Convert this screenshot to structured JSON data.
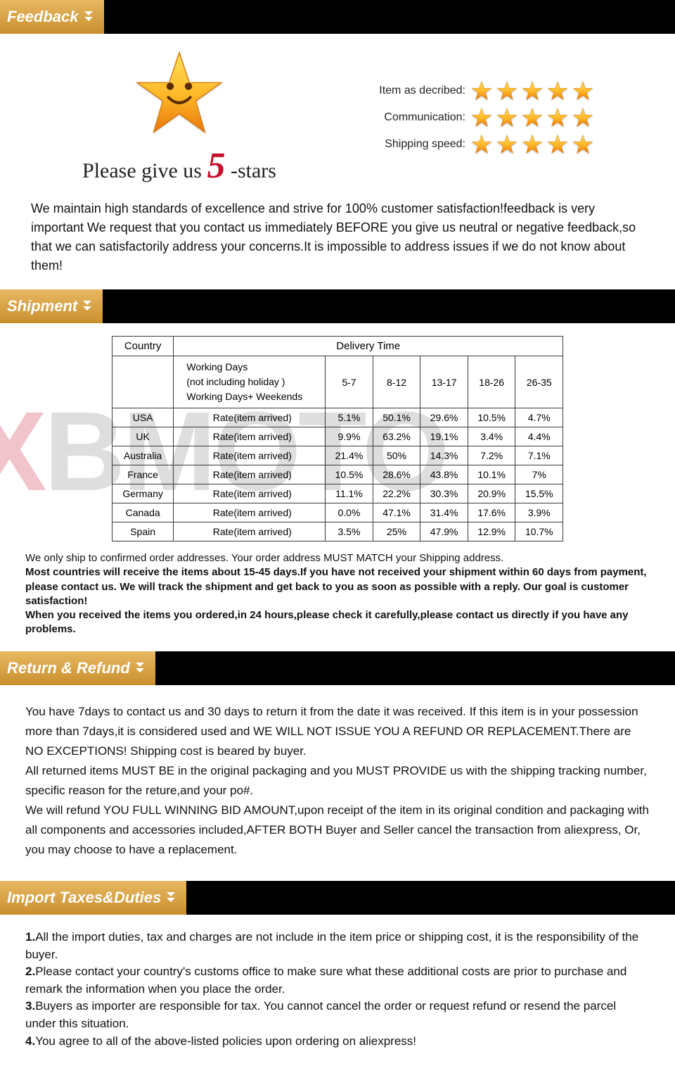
{
  "sections": {
    "feedback": "Feedback",
    "shipment": "Shipment",
    "return": "Return & Refund",
    "taxes": "Import Taxes&Duties"
  },
  "colors": {
    "tab_grad_top": "#e8b862",
    "tab_grad_bot": "#c88f2e",
    "bar_bg": "#000000",
    "star_top": "#ffd23a",
    "star_bot": "#f08a1a",
    "five_red": "#c8102e"
  },
  "feedback": {
    "please_prefix": "Please give us ",
    "five": "5",
    "please_suffix": " -stars",
    "rows": [
      {
        "label": "Item as decribed:",
        "stars": 5
      },
      {
        "label": "Communication:",
        "stars": 5
      },
      {
        "label": "Shipping speed:",
        "stars": 5
      }
    ],
    "text": "We maintain high standards of excellence and strive for 100% customer satisfaction!feedback is very important We request that you contact us immediately BEFORE you give us neutral or negative feedback,so that we can satisfactorily address your concerns.It is impossible to address issues if we do not know about them!"
  },
  "shipment": {
    "watermark_x": "X",
    "watermark_rest": "BMOTO",
    "table": {
      "country_hdr": "Country",
      "delivery_hdr": "Delivery Time",
      "working_days": "Working Days\n(not including holiday )\nWorking Days+ Weekends",
      "buckets": [
        "5-7",
        "8-12",
        "13-17",
        "18-26",
        "26-35"
      ],
      "rate_label": "Rate(item arrived)",
      "rows": [
        {
          "country": "USA",
          "vals": [
            "5.1%",
            "50.1%",
            "29.6%",
            "10.5%",
            "4.7%"
          ]
        },
        {
          "country": "UK",
          "vals": [
            "9.9%",
            "63.2%",
            "19.1%",
            "3.4%",
            "4.4%"
          ]
        },
        {
          "country": "Australia",
          "vals": [
            "21.4%",
            "50%",
            "14.3%",
            "7.2%",
            "7.1%"
          ]
        },
        {
          "country": "France",
          "vals": [
            "10.5%",
            "28.6%",
            "43.8%",
            "10.1%",
            "7%"
          ]
        },
        {
          "country": "Germany",
          "vals": [
            "11.1%",
            "22.2%",
            "30.3%",
            "20.9%",
            "15.5%"
          ]
        },
        {
          "country": "Canada",
          "vals": [
            "0.0%",
            "47.1%",
            "31.4%",
            "17.6%",
            "3.9%"
          ]
        },
        {
          "country": "Spain",
          "vals": [
            "3.5%",
            "25%",
            "47.9%",
            "12.9%",
            "10.7%"
          ]
        }
      ]
    },
    "note1": "We only ship to confirmed order addresses. Your order address MUST MATCH your Shipping address.",
    "note2": "Most countries will receive the items about 15-45 days.If you have not received your shipment within 60 days from payment, please contact us. We will track the shipment and get back to you as soon as possible with a reply. Our goal is customer satisfaction!",
    "note3": "When you received the items you ordered,in 24 hours,please check it carefully,please contact us directly if you have any problems."
  },
  "return": {
    "p1": "You have 7days to contact us and 30 days to return it from the date it was received. If this item is in your possession more than 7days,it is considered used and WE WILL NOT ISSUE YOU A REFUND OR REPLACEMENT.There are NO EXCEPTIONS! Shipping cost is beared by buyer.",
    "p2": "All returned items MUST BE in the original packaging and you MUST PROVIDE us with the shipping tracking number, specific reason for the reture,and your po#.",
    "p3": "We will refund YOU FULL WINNING BID AMOUNT,upon receipt of the item in its original condition and packaging with all components and accessories included,AFTER BOTH Buyer and Seller cancel the transaction from aliexpress, Or, you may choose to have a replacement."
  },
  "taxes": {
    "items": [
      "All the import duties, tax and charges are not include in the item price or shipping cost, it is the responsibility of the buyer.",
      "Please contact your country's customs office to make sure what these additional costs are prior to purchase and remark the information when you place the order.",
      "Buyers as importer are responsible for tax. You cannot cancel the order or request refund or resend the parcel under this situation.",
      "You agree to all of the above-listed policies upon ordering on aliexpress!"
    ]
  }
}
